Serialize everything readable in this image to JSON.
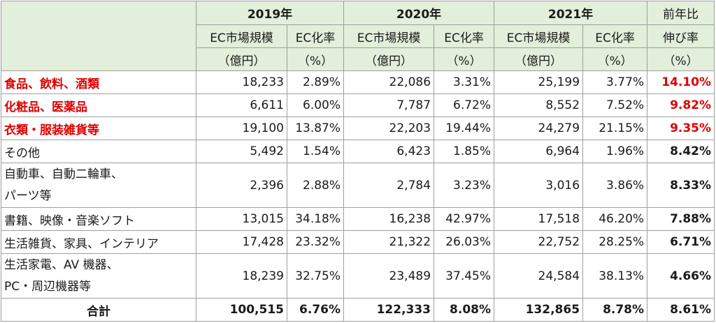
{
  "header": {
    "years": [
      "2019年",
      "2020年",
      "2021年"
    ],
    "growth_label_1": "前年比",
    "growth_label_2": "伸び率",
    "growth_label_3": "（%）",
    "ec_size_1": "EC市場規模",
    "ec_size_2": "（億円）",
    "ec_rate_1": "EC化率",
    "ec_rate_2": "（%）"
  },
  "rows": [
    {
      "label": "食品、飲料、酒類",
      "v2019": "18,233",
      "r2019": "2.89%",
      "v2020": "22,086",
      "r2020": "3.31%",
      "v2021": "25,199",
      "r2021": "3.77%",
      "growth": "14.10%"
    },
    {
      "label": "化粧品、医薬品",
      "v2019": "6,611",
      "r2019": "6.00%",
      "v2020": "7,787",
      "r2020": "6.72%",
      "v2021": "8,552",
      "r2021": "7.52%",
      "growth": "9.82%"
    },
    {
      "label": "衣類・服装雑貨等",
      "v2019": "19,100",
      "r2019": "13.87%",
      "v2020": "22,203",
      "r2020": "19.44%",
      "v2021": "24,279",
      "r2021": "21.15%",
      "growth": "9.35%"
    },
    {
      "label": "その他",
      "v2019": "5,492",
      "r2019": "1.54%",
      "v2020": "6,423",
      "r2020": "1.85%",
      "v2021": "6,964",
      "r2021": "1.96%",
      "growth": "8.42%"
    },
    {
      "label1": "自動車、自動二輪車、",
      "label2": "パーツ等",
      "v2019": "2,396",
      "r2019": "2.88%",
      "v2020": "2,784",
      "r2020": "3.23%",
      "v2021": "3,016",
      "r2021": "3.86%",
      "growth": "8.33%"
    },
    {
      "label": "書籍、映像・音楽ソフト",
      "v2019": "13,015",
      "r2019": "34.18%",
      "v2020": "16,238",
      "r2020": "42.97%",
      "v2021": "17,518",
      "r2021": "46.20%",
      "growth": "7.88%"
    },
    {
      "label": "生活雑貨、家具、インテリア",
      "v2019": "17,428",
      "r2019": "23.32%",
      "v2020": "21,322",
      "r2020": "26.03%",
      "v2021": "22,752",
      "r2021": "28.25%",
      "growth": "6.71%"
    },
    {
      "label1": "生活家電、AV 機器、",
      "label2": "PC・周辺機器等",
      "v2019": "18,239",
      "r2019": "32.75%",
      "v2020": "23,489",
      "r2020": "37.45%",
      "v2021": "24,584",
      "r2021": "38.13%",
      "growth": "4.66%"
    }
  ],
  "total": {
    "label": "合計",
    "v2019": "100,515",
    "r2019": "6.76%",
    "v2020": "122,333",
    "r2020": "8.08%",
    "v2021": "132,865",
    "r2021": "8.78%",
    "growth": "8.61%"
  },
  "colors": {
    "header_bg": "#e2efda",
    "highlight": "#e00000"
  }
}
